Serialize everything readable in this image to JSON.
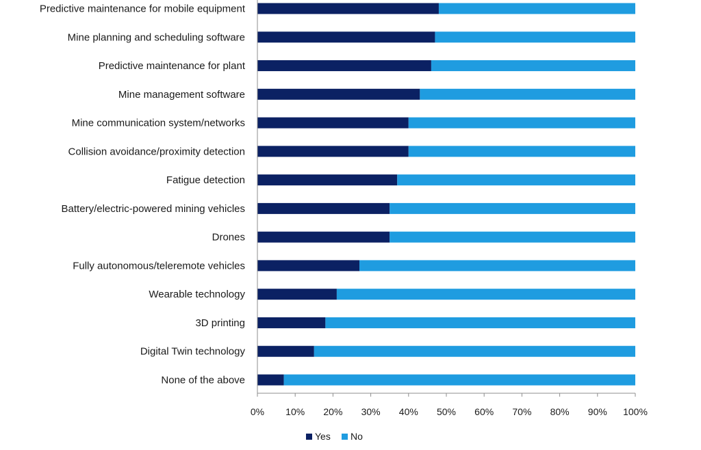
{
  "chart_data": {
    "type": "bar",
    "orientation": "horizontal",
    "stacked": "percent",
    "categories": [
      "Predictive maintenance for mobile equipment",
      "Mine planning and scheduling software",
      "Predictive maintenance for plant",
      "Mine management software",
      "Mine communication system/networks",
      "Collision avoidance/proximity detection",
      "Fatigue detection",
      "Battery/electric-powered mining vehicles",
      "Drones",
      "Fully autonomous/teleremote vehicles",
      "Wearable technology",
      "3D printing",
      "Digital Twin technology",
      "None of the above"
    ],
    "series": [
      {
        "name": "Yes",
        "color": "#0b2163",
        "values": [
          48,
          47,
          46,
          43,
          40,
          40,
          37,
          35,
          35,
          27,
          21,
          18,
          15,
          7
        ]
      },
      {
        "name": "No",
        "color": "#1f9ce0",
        "values": [
          52,
          53,
          54,
          57,
          60,
          60,
          63,
          65,
          65,
          73,
          79,
          82,
          85,
          93
        ]
      }
    ],
    "xlim": [
      0,
      100
    ],
    "x_ticks": [
      "0%",
      "10%",
      "20%",
      "30%",
      "40%",
      "50%",
      "60%",
      "70%",
      "80%",
      "90%",
      "100%"
    ],
    "grid": false,
    "legend": "bottom"
  }
}
